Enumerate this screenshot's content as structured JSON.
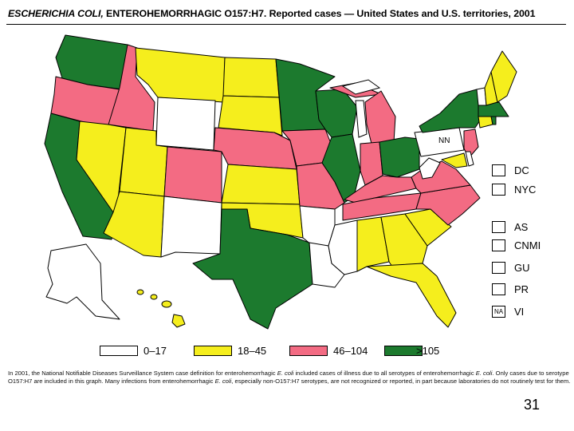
{
  "title": {
    "italic_part": "ESCHERICHIA COLI,",
    "rest": " ENTEROHEMORRHAGIC O157:H7. Reported cases — United States and U.S. territories, 2001"
  },
  "colors": {
    "low": "#ffffff",
    "mid": "#f5ee1d",
    "high": "#f36b83",
    "top": "#1c7a2e"
  },
  "legend": [
    {
      "label": "0–17",
      "color": "#ffffff"
    },
    {
      "label": "18–45",
      "color": "#f5ee1d"
    },
    {
      "label": "46–104",
      "color": "#f36b83"
    },
    {
      "label": ">105",
      "color": "#1c7a2e"
    }
  ],
  "map_labels": {
    "nn": "NN"
  },
  "territories": [
    {
      "code": "DC",
      "box": ""
    },
    {
      "code": "NYC",
      "box": ""
    },
    {
      "code": "AS",
      "box": ""
    },
    {
      "code": "CNMI",
      "box": ""
    },
    {
      "code": "GU",
      "box": ""
    },
    {
      "code": "PR",
      "box": ""
    },
    {
      "code": "VI",
      "box": "NA"
    }
  ],
  "footnote": {
    "line1a": "In 2001, the National Notifiable Diseases Surveillance System case definition for enterohemorrhagic ",
    "line1b": "E. coli",
    "line1c": " included cases of illness due to all serotypes of enterohemorrhagic ",
    "line1d": "E. coli",
    "line1e": ". Only cases due to serotype O157:H7 are included in this graph. Many infections from enterohemorrhagic ",
    "line1f": "E. coli",
    "line1g": ", especially non-O157:H7 serotypes, are not recognized or reported, in part because laboratories do not routinely test for them."
  },
  "page_number": "31"
}
